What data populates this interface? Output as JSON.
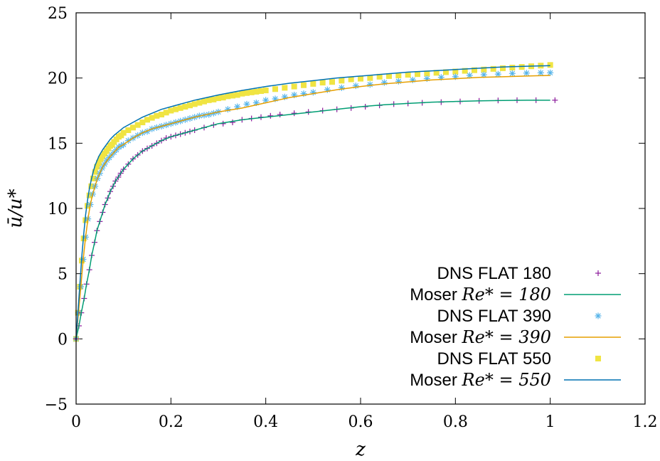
{
  "chart_data": {
    "type": "line",
    "title": "",
    "xlabel": "z",
    "ylabel": "ū/u*",
    "xlim": [
      0,
      1.2
    ],
    "ylim": [
      -5,
      25
    ],
    "xticks": [
      "0",
      "0.2",
      "0.4",
      "0.6",
      "0.8",
      "1",
      "1.2"
    ],
    "yticks": [
      "−5",
      "0",
      "5",
      "10",
      "15",
      "20",
      "25"
    ],
    "legend_position": "bottom-right",
    "series": [
      {
        "name": "DNS FLAT 180",
        "kind": "markers",
        "marker": "plus",
        "color": "#8b1a9b",
        "x": [
          0.0,
          0.006,
          0.011,
          0.017,
          0.022,
          0.028,
          0.033,
          0.039,
          0.044,
          0.05,
          0.056,
          0.061,
          0.067,
          0.072,
          0.078,
          0.083,
          0.089,
          0.094,
          0.1,
          0.11,
          0.12,
          0.13,
          0.14,
          0.15,
          0.16,
          0.17,
          0.18,
          0.19,
          0.2,
          0.21,
          0.22,
          0.23,
          0.24,
          0.25,
          0.27,
          0.29,
          0.31,
          0.33,
          0.35,
          0.37,
          0.39,
          0.41,
          0.43,
          0.46,
          0.49,
          0.52,
          0.55,
          0.58,
          0.61,
          0.64,
          0.67,
          0.7,
          0.73,
          0.77,
          0.81,
          0.85,
          0.89,
          0.93,
          0.97,
          1.01
        ],
        "y": [
          0.0,
          1.0,
          2.0,
          3.1,
          4.2,
          5.3,
          6.4,
          7.4,
          8.3,
          9.0,
          9.7,
          10.3,
          10.8,
          11.3,
          11.7,
          12.1,
          12.4,
          12.7,
          13.0,
          13.4,
          13.8,
          14.1,
          14.4,
          14.6,
          14.8,
          15.0,
          15.2,
          15.4,
          15.5,
          15.6,
          15.7,
          15.8,
          15.9,
          16.0,
          16.2,
          16.4,
          16.5,
          16.6,
          16.8,
          16.9,
          17.0,
          17.1,
          17.2,
          17.3,
          17.4,
          17.5,
          17.6,
          17.7,
          17.8,
          17.9,
          18.0,
          18.05,
          18.1,
          18.15,
          18.2,
          18.25,
          18.28,
          18.3,
          18.3,
          18.3
        ]
      },
      {
        "name": "Moser Re* = 180",
        "kind": "line",
        "color": "#009e73",
        "x": [
          0.0,
          0.006,
          0.011,
          0.017,
          0.022,
          0.028,
          0.033,
          0.039,
          0.044,
          0.05,
          0.056,
          0.061,
          0.067,
          0.072,
          0.078,
          0.083,
          0.089,
          0.094,
          0.1,
          0.12,
          0.14,
          0.16,
          0.18,
          0.2,
          0.25,
          0.3,
          0.35,
          0.4,
          0.45,
          0.5,
          0.55,
          0.6,
          0.65,
          0.7,
          0.75,
          0.8,
          0.85,
          0.9,
          0.95,
          1.0
        ],
        "y": [
          0.0,
          1.0,
          2.0,
          3.1,
          4.2,
          5.3,
          6.4,
          7.4,
          8.3,
          9.0,
          9.7,
          10.3,
          10.8,
          11.3,
          11.7,
          12.1,
          12.4,
          12.7,
          13.0,
          13.8,
          14.4,
          14.8,
          15.2,
          15.5,
          16.0,
          16.5,
          16.8,
          17.0,
          17.2,
          17.4,
          17.6,
          17.8,
          17.95,
          18.05,
          18.15,
          18.2,
          18.25,
          18.28,
          18.3,
          18.3
        ]
      },
      {
        "name": "DNS FLAT 390",
        "kind": "markers",
        "marker": "star",
        "color": "#56b4e9",
        "x": [
          0.0,
          0.005,
          0.01,
          0.015,
          0.02,
          0.025,
          0.03,
          0.035,
          0.04,
          0.045,
          0.05,
          0.055,
          0.06,
          0.065,
          0.07,
          0.075,
          0.08,
          0.085,
          0.09,
          0.095,
          0.1,
          0.11,
          0.12,
          0.13,
          0.14,
          0.15,
          0.16,
          0.17,
          0.18,
          0.19,
          0.2,
          0.21,
          0.22,
          0.23,
          0.24,
          0.25,
          0.26,
          0.27,
          0.28,
          0.29,
          0.3,
          0.32,
          0.34,
          0.36,
          0.38,
          0.4,
          0.42,
          0.44,
          0.46,
          0.48,
          0.5,
          0.53,
          0.56,
          0.59,
          0.62,
          0.65,
          0.68,
          0.71,
          0.74,
          0.77,
          0.8,
          0.83,
          0.86,
          0.89,
          0.92,
          0.95,
          0.98,
          1.0
        ],
        "y": [
          0.0,
          2.0,
          4.0,
          6.1,
          7.8,
          9.2,
          10.3,
          11.1,
          11.7,
          12.3,
          12.7,
          13.1,
          13.4,
          13.7,
          13.9,
          14.1,
          14.3,
          14.5,
          14.7,
          14.8,
          14.9,
          15.2,
          15.4,
          15.6,
          15.8,
          15.9,
          16.1,
          16.2,
          16.3,
          16.4,
          16.5,
          16.6,
          16.7,
          16.8,
          16.9,
          17.0,
          17.1,
          17.15,
          17.2,
          17.3,
          17.4,
          17.6,
          17.8,
          18.0,
          18.1,
          18.3,
          18.4,
          18.55,
          18.7,
          18.8,
          18.9,
          19.1,
          19.25,
          19.4,
          19.5,
          19.65,
          19.75,
          19.85,
          19.95,
          20.05,
          20.1,
          20.2,
          20.25,
          20.3,
          20.35,
          20.38,
          20.4,
          20.4
        ]
      },
      {
        "name": "Moser Re* = 390",
        "kind": "line",
        "color": "#e69f00",
        "x": [
          0.0,
          0.005,
          0.01,
          0.015,
          0.02,
          0.025,
          0.03,
          0.035,
          0.04,
          0.045,
          0.05,
          0.055,
          0.06,
          0.07,
          0.08,
          0.09,
          0.1,
          0.12,
          0.14,
          0.16,
          0.18,
          0.2,
          0.25,
          0.3,
          0.35,
          0.4,
          0.45,
          0.5,
          0.55,
          0.6,
          0.65,
          0.7,
          0.75,
          0.8,
          0.85,
          0.9,
          0.95,
          1.0
        ],
        "y": [
          0.0,
          2.0,
          4.0,
          6.1,
          7.8,
          9.2,
          10.3,
          11.1,
          11.7,
          12.3,
          12.7,
          13.1,
          13.4,
          13.9,
          14.3,
          14.7,
          14.9,
          15.4,
          15.8,
          16.1,
          16.3,
          16.5,
          17.0,
          17.4,
          17.7,
          18.1,
          18.5,
          18.8,
          19.1,
          19.35,
          19.55,
          19.7,
          19.85,
          19.95,
          20.05,
          20.1,
          20.15,
          20.2
        ]
      },
      {
        "name": "DNS FLAT 550",
        "kind": "markers",
        "marker": "square",
        "color": "#f0e442",
        "x": [
          0.0,
          0.004,
          0.008,
          0.012,
          0.016,
          0.02,
          0.024,
          0.028,
          0.032,
          0.036,
          0.04,
          0.044,
          0.048,
          0.052,
          0.056,
          0.06,
          0.064,
          0.068,
          0.072,
          0.076,
          0.08,
          0.085,
          0.09,
          0.095,
          0.1,
          0.11,
          0.12,
          0.13,
          0.14,
          0.15,
          0.16,
          0.17,
          0.18,
          0.19,
          0.2,
          0.21,
          0.22,
          0.23,
          0.24,
          0.25,
          0.26,
          0.27,
          0.28,
          0.29,
          0.3,
          0.31,
          0.32,
          0.33,
          0.34,
          0.35,
          0.36,
          0.37,
          0.38,
          0.39,
          0.4,
          0.42,
          0.44,
          0.46,
          0.48,
          0.5,
          0.52,
          0.54,
          0.56,
          0.58,
          0.6,
          0.62,
          0.64,
          0.66,
          0.68,
          0.7,
          0.72,
          0.74,
          0.76,
          0.78,
          0.8,
          0.82,
          0.84,
          0.86,
          0.88,
          0.9,
          0.92,
          0.94,
          0.96,
          0.98,
          1.0
        ],
        "y": [
          0.0,
          2.0,
          4.0,
          6.0,
          7.7,
          9.1,
          10.2,
          11.0,
          11.7,
          12.3,
          12.8,
          13.2,
          13.5,
          13.8,
          14.0,
          14.2,
          14.4,
          14.6,
          14.8,
          14.9,
          15.1,
          15.3,
          15.5,
          15.6,
          15.8,
          16.0,
          16.2,
          16.4,
          16.6,
          16.8,
          16.95,
          17.1,
          17.2,
          17.35,
          17.5,
          17.6,
          17.7,
          17.8,
          17.9,
          18.0,
          18.1,
          18.2,
          18.3,
          18.35,
          18.45,
          18.5,
          18.6,
          18.65,
          18.7,
          18.8,
          18.85,
          18.9,
          18.95,
          19.0,
          19.05,
          19.15,
          19.25,
          19.35,
          19.45,
          19.55,
          19.65,
          19.7,
          19.8,
          19.9,
          19.95,
          20.0,
          20.1,
          20.15,
          20.2,
          20.25,
          20.3,
          20.35,
          20.4,
          20.45,
          20.5,
          20.55,
          20.6,
          20.65,
          20.7,
          20.75,
          20.8,
          20.85,
          20.9,
          20.95,
          21.0
        ]
      },
      {
        "name": "Moser Re* = 550",
        "kind": "line",
        "color": "#0072b2",
        "x": [
          0.0,
          0.004,
          0.008,
          0.012,
          0.016,
          0.02,
          0.024,
          0.028,
          0.032,
          0.036,
          0.04,
          0.048,
          0.056,
          0.064,
          0.072,
          0.08,
          0.09,
          0.1,
          0.12,
          0.14,
          0.16,
          0.18,
          0.2,
          0.25,
          0.3,
          0.35,
          0.4,
          0.45,
          0.5,
          0.55,
          0.6,
          0.65,
          0.7,
          0.75,
          0.8,
          0.85,
          0.9,
          0.95,
          1.0
        ],
        "y": [
          0.0,
          2.1,
          4.2,
          6.3,
          8.0,
          9.5,
          10.6,
          11.5,
          12.2,
          12.8,
          13.3,
          14.0,
          14.5,
          14.9,
          15.3,
          15.6,
          15.9,
          16.2,
          16.6,
          17.0,
          17.3,
          17.6,
          17.8,
          18.3,
          18.7,
          19.05,
          19.35,
          19.6,
          19.8,
          20.0,
          20.15,
          20.3,
          20.45,
          20.55,
          20.65,
          20.75,
          20.85,
          20.9,
          20.95
        ]
      }
    ],
    "legend": {
      "entries": [
        {
          "prefix": "DNS FLAT 180",
          "math": ""
        },
        {
          "prefix": "Moser ",
          "math": "Re* = 180"
        },
        {
          "prefix": "DNS FLAT 390",
          "math": ""
        },
        {
          "prefix": "Moser ",
          "math": "Re* = 390"
        },
        {
          "prefix": "DNS FLAT 550",
          "math": ""
        },
        {
          "prefix": "Moser ",
          "math": "Re* = 550"
        }
      ]
    }
  }
}
